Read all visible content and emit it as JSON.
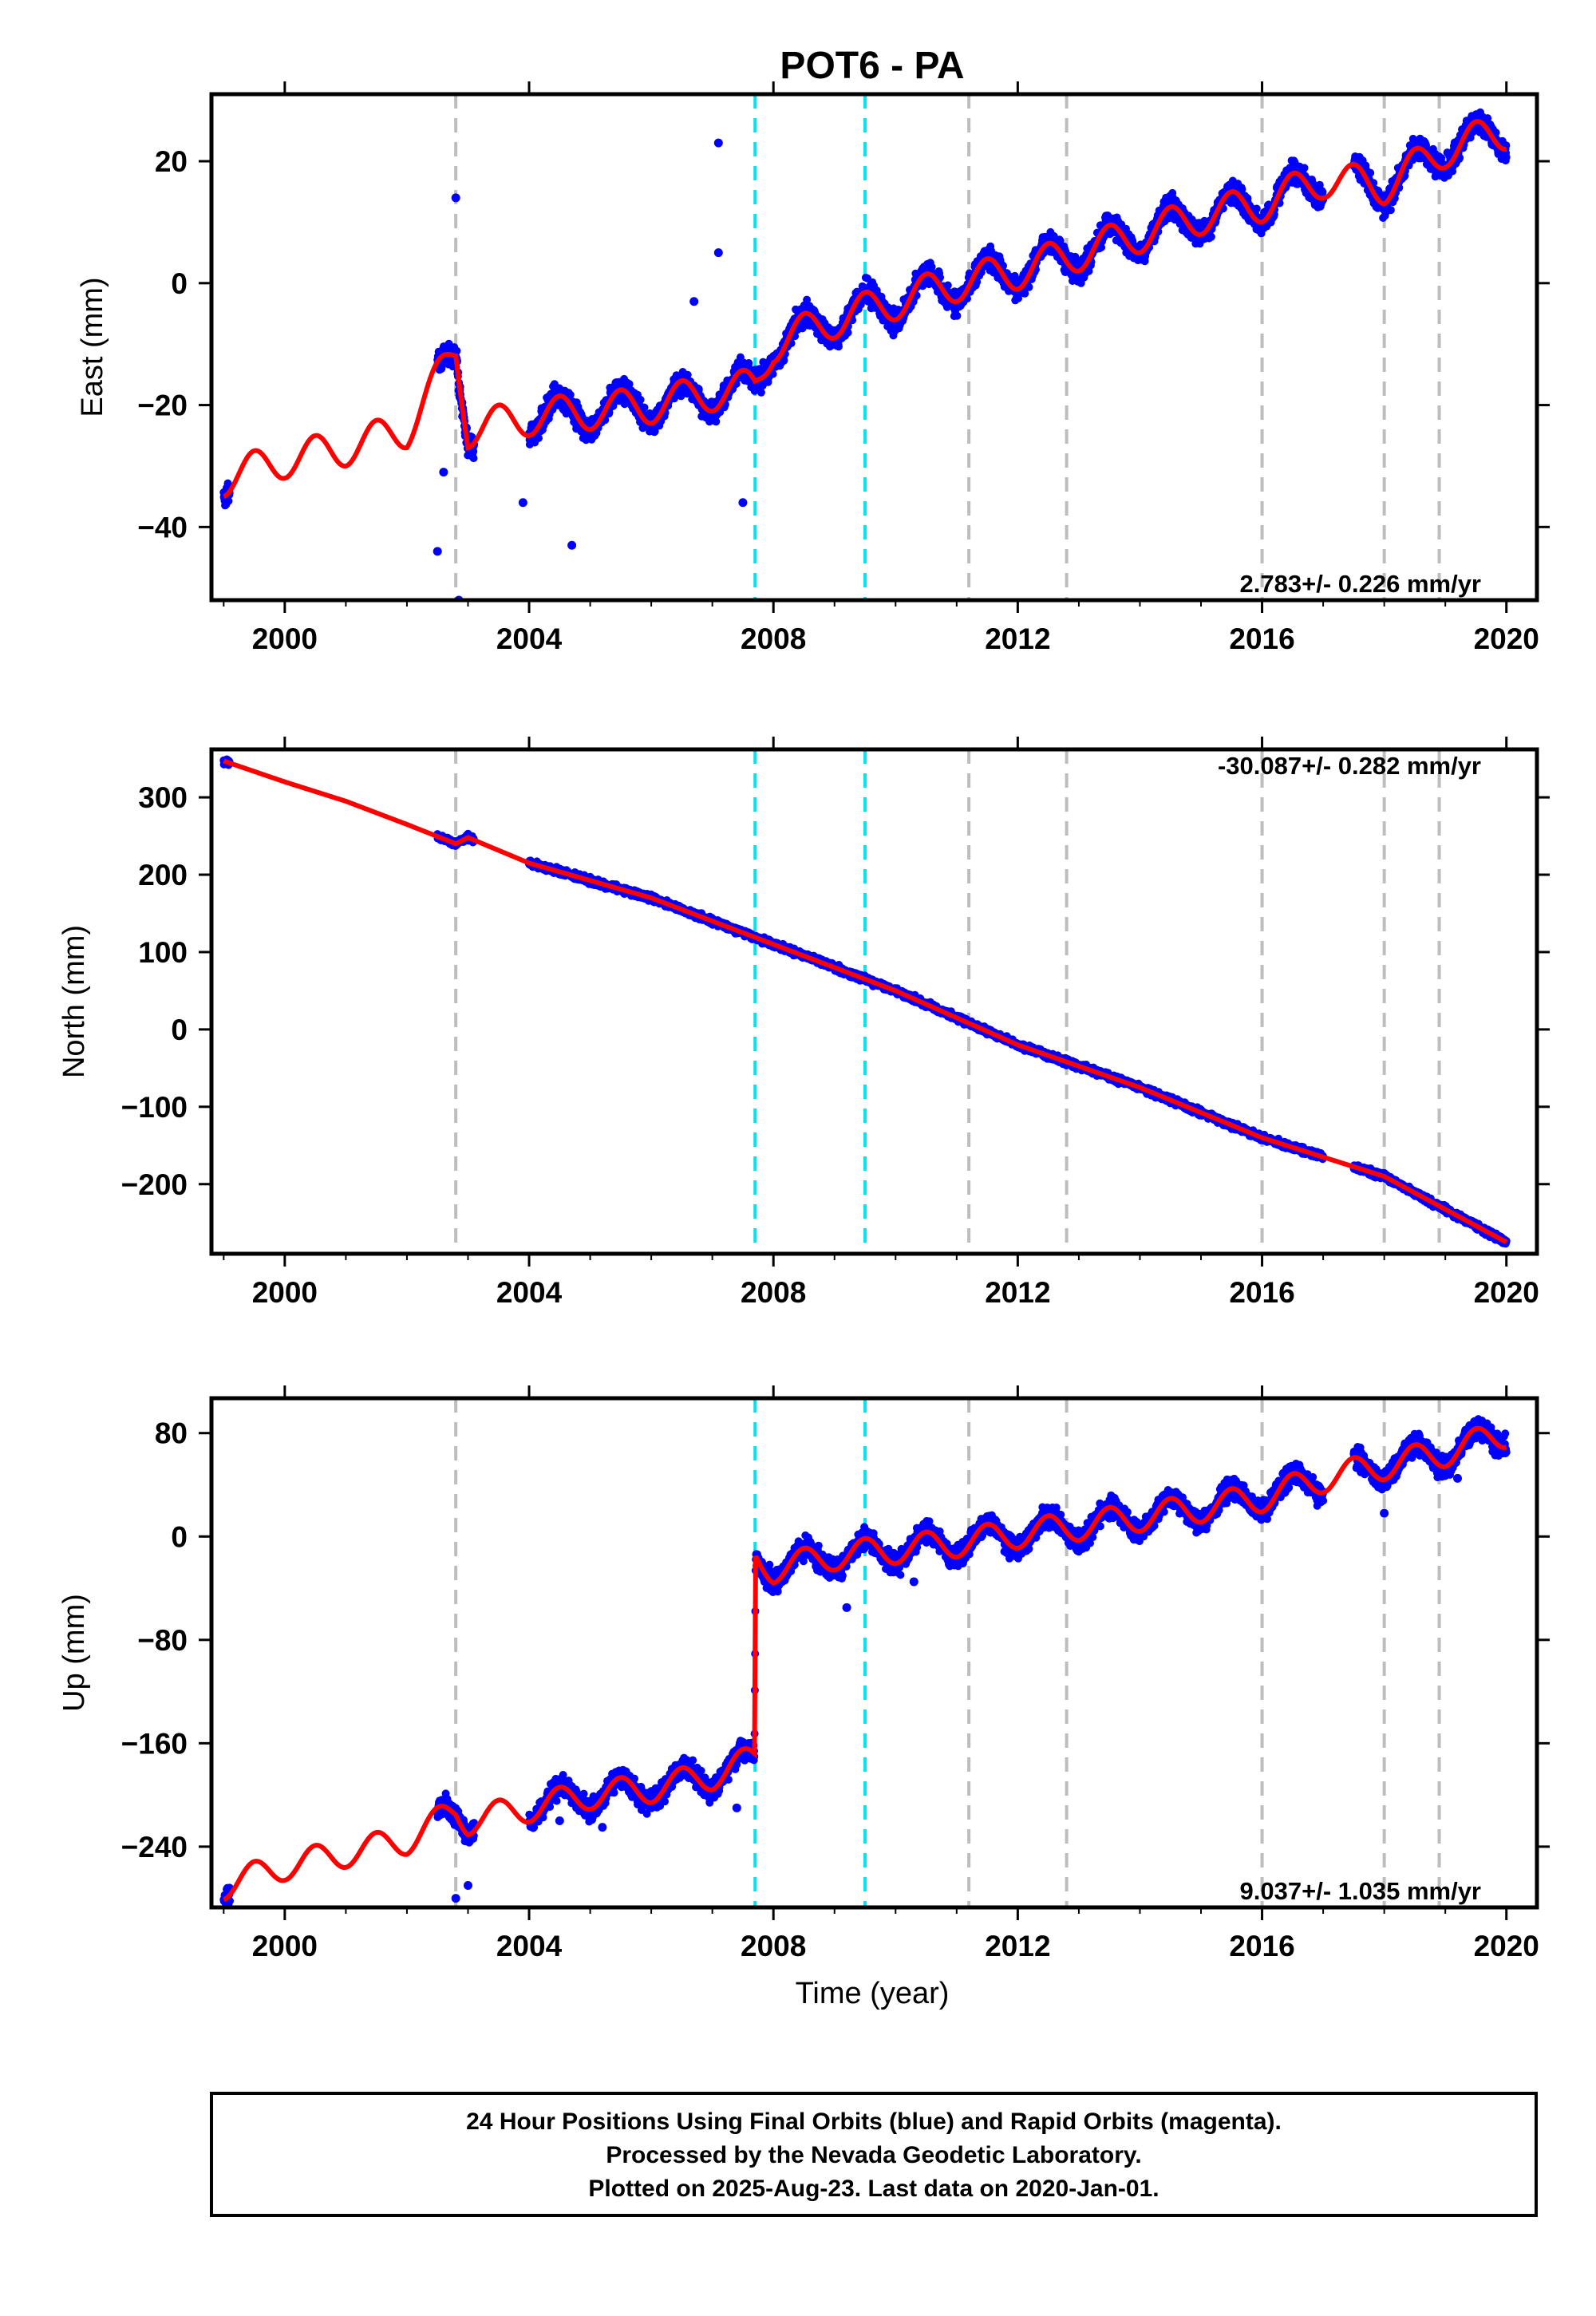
{
  "title": "POT6 - PA",
  "xlabel": "Time (year)",
  "colors": {
    "data": "#0000ff",
    "model": "#ff0000",
    "offset_major": "#00e5ee",
    "offset_minor": "#bdbdbd",
    "frame": "#000000"
  },
  "footer": {
    "line1": "24 Hour Positions Using Final Orbits (blue) and Rapid Orbits (magenta).",
    "line2": "Processed by the Nevada Geodetic Laboratory.",
    "line3": "Plotted on 2025-Aug-23. Last data on 2020-Jan-01."
  },
  "chart_data": [
    {
      "type": "scatter",
      "ylabel": "East (mm)",
      "xlim": [
        1998.8,
        2020.5
      ],
      "ylim": [
        -52,
        31
      ],
      "xticks": [
        2000,
        2004,
        2008,
        2012,
        2016,
        2020
      ],
      "yticks": [
        -40,
        -20,
        0,
        20
      ],
      "ytick_labels": [
        "−40",
        "−20",
        "0",
        "20"
      ],
      "rate_label": "2.783+/- 0.226 mm/yr",
      "rate_position": "bottom-right",
      "offsets_major": [
        2007.7,
        2009.5
      ],
      "offsets_minor": [
        2002.8,
        2011.2,
        2012.8,
        2016.0,
        2018.0,
        2018.9
      ],
      "series": [
        {
          "role": "data",
          "segments": [
            [
              1999.0,
              1999.1
            ],
            [
              2002.5,
              2003.1
            ],
            [
              2004.0,
              2017.0
            ],
            [
              2017.5,
              2020.0
            ]
          ],
          "x": [
            1999.0,
            2000.0,
            2001.0,
            2002.0,
            2002.8,
            2003.0,
            2004.0,
            2005.0,
            2006.0,
            2007.0,
            2007.7,
            2008.0,
            2009.0,
            2010.0,
            2011.0,
            2012.0,
            2013.0,
            2014.0,
            2015.0,
            2016.0,
            2017.0,
            2018.0,
            2019.0,
            2020.0
          ],
          "y": [
            -32,
            -29,
            -27,
            -24,
            -11,
            -24,
            -22,
            -21,
            -20,
            -18,
            -17,
            -10,
            -6,
            -3,
            0,
            2,
            5,
            8,
            11,
            13,
            17,
            16,
            22,
            25
          ],
          "outliers": [
            [
              2002.5,
              -44
            ],
            [
              2002.6,
              -31
            ],
            [
              2002.8,
              14
            ],
            [
              2002.85,
              -52
            ],
            [
              2004.7,
              -43
            ],
            [
              2007.1,
              23
            ],
            [
              2007.1,
              5
            ],
            [
              2007.5,
              -36
            ],
            [
              2006.7,
              -3
            ],
            [
              2003.9,
              -36
            ]
          ]
        },
        {
          "role": "model",
          "x": [
            1999.0,
            2000.0,
            2001.0,
            2002.0,
            2002.8,
            2003.0,
            2004.0,
            2005.0,
            2006.0,
            2007.0,
            2007.7,
            2008.0,
            2009.0,
            2010.0,
            2011.0,
            2012.0,
            2013.0,
            2014.0,
            2015.0,
            2016.0,
            2017.0,
            2018.0,
            2019.0,
            2020.0
          ],
          "y": [
            -32,
            -29,
            -27,
            -24,
            -11,
            -24,
            -22,
            -21,
            -20,
            -18,
            -17,
            -10,
            -6,
            -3,
            0,
            2,
            5,
            8,
            11,
            13,
            17,
            16,
            22,
            25
          ]
        }
      ]
    },
    {
      "type": "scatter",
      "ylabel": "North (mm)",
      "xlim": [
        1998.8,
        2020.5
      ],
      "ylim": [
        -290,
        362
      ],
      "xticks": [
        2000,
        2004,
        2008,
        2012,
        2016,
        2020
      ],
      "yticks": [
        -200,
        -100,
        0,
        100,
        200,
        300
      ],
      "ytick_labels": [
        "−200",
        "−100",
        "0",
        "100",
        "200",
        "300"
      ],
      "rate_label": "-30.087+/- 0.282 mm/yr",
      "rate_position": "top-right",
      "offsets_major": [
        2007.7,
        2009.5
      ],
      "offsets_minor": [
        2002.8,
        2011.2,
        2012.8,
        2016.0,
        2018.0,
        2018.9
      ],
      "series": [
        {
          "role": "data",
          "segments": [
            [
              1999.0,
              1999.1
            ],
            [
              2002.5,
              2003.1
            ],
            [
              2004.0,
              2017.0
            ],
            [
              2017.5,
              2020.0
            ]
          ],
          "x": [
            1999.0,
            2000.0,
            2001.0,
            2002.0,
            2002.8,
            2003.0,
            2004.0,
            2006.0,
            2008.0,
            2010.0,
            2012.0,
            2014.0,
            2016.0,
            2018.0,
            2020.0
          ],
          "y": [
            347,
            320,
            295,
            265,
            240,
            248,
            215,
            170,
            110,
            50,
            -20,
            -75,
            -140,
            -190,
            -275
          ],
          "outliers": []
        },
        {
          "role": "model",
          "x": [
            1999.0,
            2000.0,
            2001.0,
            2002.0,
            2002.8,
            2003.0,
            2004.0,
            2006.0,
            2008.0,
            2010.0,
            2012.0,
            2014.0,
            2016.0,
            2018.0,
            2020.0
          ],
          "y": [
            347,
            320,
            295,
            265,
            240,
            248,
            215,
            170,
            110,
            50,
            -20,
            -75,
            -140,
            -190,
            -275
          ]
        }
      ]
    },
    {
      "type": "scatter",
      "ylabel": "Up (mm)",
      "xlim": [
        1998.8,
        2020.5
      ],
      "ylim": [
        -287,
        107
      ],
      "xticks": [
        2000,
        2004,
        2008,
        2012,
        2016,
        2020
      ],
      "yticks": [
        -240,
        -160,
        -80,
        0,
        80
      ],
      "ytick_labels": [
        "−240",
        "−160",
        "−80",
        "0",
        "80"
      ],
      "rate_label": "9.037+/- 1.035 mm/yr",
      "rate_position": "bottom-right",
      "offsets_major": [
        2007.7,
        2009.5
      ],
      "offsets_minor": [
        2002.8,
        2011.2,
        2012.8,
        2016.0,
        2018.0,
        2018.9
      ],
      "series": [
        {
          "role": "data",
          "segments": [
            [
              1999.0,
              1999.1
            ],
            [
              2002.5,
              2003.1
            ],
            [
              2004.0,
              2017.0
            ],
            [
              2017.5,
              2020.0
            ]
          ],
          "x": [
            1999.0,
            2000.0,
            2001.0,
            2002.0,
            2002.8,
            2003.0,
            2004.0,
            2005.0,
            2006.0,
            2007.0,
            2007.69,
            2007.71,
            2008.0,
            2009.0,
            2010.0,
            2011.0,
            2012.0,
            2013.0,
            2014.0,
            2015.0,
            2016.0,
            2017.0,
            2018.0,
            2019.0,
            2020.0
          ],
          "y": [
            -270,
            -255,
            -245,
            -235,
            -212,
            -220,
            -210,
            -200,
            -195,
            -185,
            -172,
            -18,
            -25,
            -15,
            -10,
            -5,
            2,
            8,
            15,
            22,
            30,
            45,
            55,
            65,
            80
          ],
          "outliers": [
            [
              2002.8,
              -280
            ],
            [
              2003.0,
              -270
            ],
            [
              2004.5,
              -220
            ],
            [
              2005.2,
              -225
            ],
            [
              2007.4,
              -210
            ],
            [
              2009.2,
              -55
            ],
            [
              2010.3,
              -35
            ],
            [
              2018.0,
              18
            ],
            [
              2017.6,
              52
            ],
            [
              2019.2,
              45
            ]
          ]
        },
        {
          "role": "model",
          "x": [
            1999.0,
            2000.0,
            2001.0,
            2002.0,
            2002.8,
            2003.0,
            2004.0,
            2005.0,
            2006.0,
            2007.0,
            2007.69,
            2007.71,
            2008.0,
            2009.0,
            2010.0,
            2011.0,
            2012.0,
            2013.0,
            2014.0,
            2015.0,
            2016.0,
            2017.0,
            2018.0,
            2019.0,
            2020.0
          ],
          "y": [
            -270,
            -255,
            -245,
            -235,
            -212,
            -220,
            -210,
            -200,
            -195,
            -185,
            -172,
            -18,
            -25,
            -15,
            -10,
            -5,
            2,
            8,
            15,
            22,
            30,
            45,
            55,
            65,
            80
          ]
        }
      ]
    }
  ]
}
